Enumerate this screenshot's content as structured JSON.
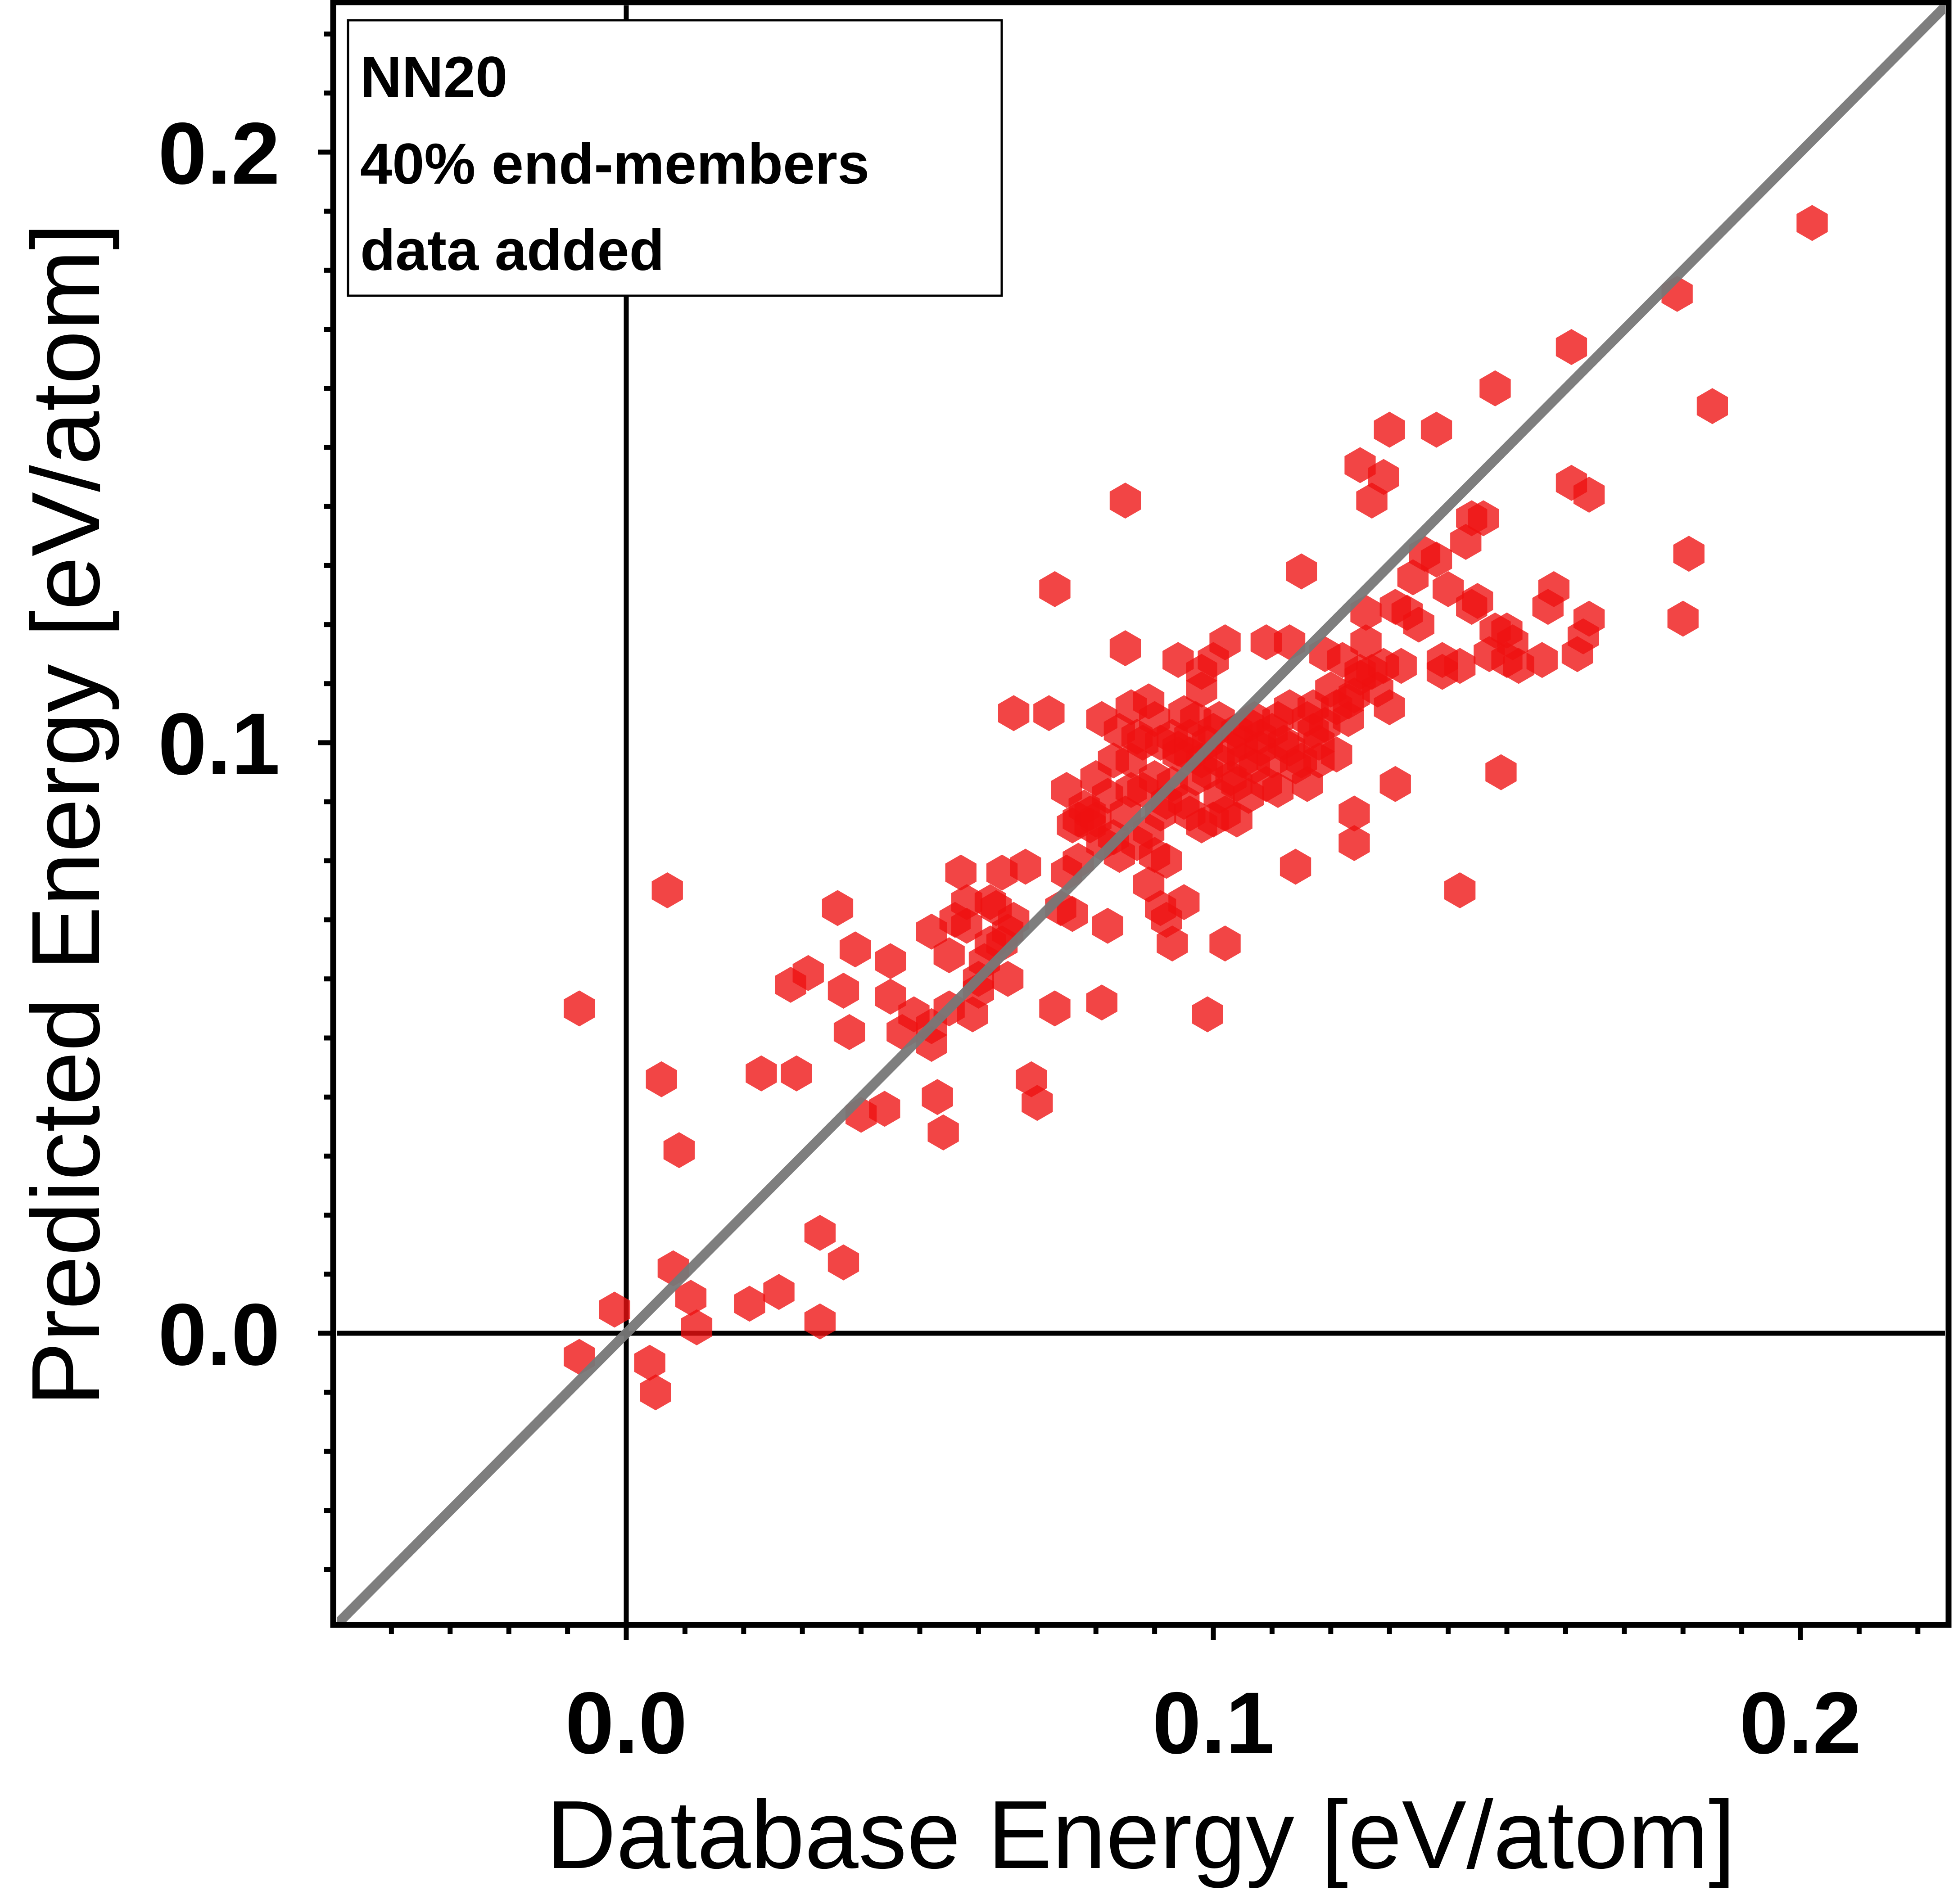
{
  "chart_data": {
    "type": "scatter",
    "title": "",
    "xlabel": "Database Energy [eV/atom]",
    "ylabel": "Predicted Energy [eV/atom]",
    "xlim": [
      -0.05,
      0.225
    ],
    "ylim": [
      -0.05,
      0.225
    ],
    "xticks": [
      0.0,
      0.1,
      0.2
    ],
    "xtick_labels": [
      "0.0",
      "0.1",
      "0.2"
    ],
    "yticks": [
      0.0,
      0.1,
      0.2
    ],
    "ytick_labels": [
      "0.0",
      "0.1",
      "0.2"
    ],
    "minor_tick_step": 0.01,
    "legend_position": "top-left",
    "annotation": [
      "NN20",
      "40% end-members",
      "data added"
    ],
    "reference_line": {
      "label": "y = x",
      "color": "#777777"
    },
    "zero_lines": true,
    "marker": {
      "shape": "hexagon",
      "color": "#ee1111",
      "opacity": 0.78
    },
    "series": [
      {
        "name": "NN20",
        "points": [
          [
            -0.008,
            -0.004
          ],
          [
            -0.008,
            0.055
          ],
          [
            -0.002,
            0.004
          ],
          [
            0.004,
            -0.005
          ],
          [
            0.005,
            -0.01
          ],
          [
            0.006,
            0.043
          ],
          [
            0.007,
            0.075
          ],
          [
            0.008,
            0.011
          ],
          [
            0.009,
            0.031
          ],
          [
            0.011,
            0.006
          ],
          [
            0.012,
            0.001
          ],
          [
            0.021,
            0.005
          ],
          [
            0.023,
            0.044
          ],
          [
            0.026,
            0.007
          ],
          [
            0.028,
            0.059
          ],
          [
            0.029,
            0.044
          ],
          [
            0.031,
            0.061
          ],
          [
            0.033,
            0.002
          ],
          [
            0.033,
            0.017
          ],
          [
            0.036,
            0.072
          ],
          [
            0.037,
            0.058
          ],
          [
            0.037,
            0.012
          ],
          [
            0.038,
            0.051
          ],
          [
            0.039,
            0.065
          ],
          [
            0.04,
            0.037
          ],
          [
            0.044,
            0.038
          ],
          [
            0.045,
            0.063
          ],
          [
            0.045,
            0.057
          ],
          [
            0.047,
            0.051
          ],
          [
            0.049,
            0.054
          ],
          [
            0.052,
            0.052
          ],
          [
            0.052,
            0.049
          ],
          [
            0.052,
            0.068
          ],
          [
            0.053,
            0.04
          ],
          [
            0.054,
            0.034
          ],
          [
            0.055,
            0.055
          ],
          [
            0.055,
            0.064
          ],
          [
            0.056,
            0.07
          ],
          [
            0.057,
            0.078
          ],
          [
            0.058,
            0.073
          ],
          [
            0.058,
            0.069
          ],
          [
            0.059,
            0.054
          ],
          [
            0.06,
            0.06
          ],
          [
            0.06,
            0.058
          ],
          [
            0.061,
            0.063
          ],
          [
            0.062,
            0.073
          ],
          [
            0.062,
            0.066
          ],
          [
            0.063,
            0.072
          ],
          [
            0.064,
            0.078
          ],
          [
            0.064,
            0.066
          ],
          [
            0.065,
            0.06
          ],
          [
            0.065,
            0.068
          ],
          [
            0.066,
            0.105
          ],
          [
            0.066,
            0.07
          ],
          [
            0.068,
            0.079
          ],
          [
            0.069,
            0.043
          ],
          [
            0.07,
            0.039
          ],
          [
            0.072,
            0.105
          ],
          [
            0.073,
            0.055
          ],
          [
            0.073,
            0.126
          ],
          [
            0.074,
            0.072
          ],
          [
            0.075,
            0.092
          ],
          [
            0.075,
            0.078
          ],
          [
            0.076,
            0.086
          ],
          [
            0.076,
            0.071
          ],
          [
            0.077,
            0.087
          ],
          [
            0.077,
            0.08
          ],
          [
            0.078,
            0.089
          ],
          [
            0.079,
            0.086
          ],
          [
            0.079,
            0.088
          ],
          [
            0.08,
            0.087
          ],
          [
            0.08,
            0.094
          ],
          [
            0.081,
            0.083
          ],
          [
            0.081,
            0.056
          ],
          [
            0.081,
            0.104
          ],
          [
            0.082,
            0.069
          ],
          [
            0.082,
            0.091
          ],
          [
            0.083,
            0.097
          ],
          [
            0.083,
            0.084
          ],
          [
            0.084,
            0.102
          ],
          [
            0.084,
            0.081
          ],
          [
            0.085,
            0.088
          ],
          [
            0.085,
            0.141
          ],
          [
            0.085,
            0.116
          ],
          [
            0.086,
            0.097
          ],
          [
            0.086,
            0.092
          ],
          [
            0.086,
            0.106
          ],
          [
            0.087,
            0.083
          ],
          [
            0.087,
            0.101
          ],
          [
            0.088,
            0.092
          ],
          [
            0.088,
            0.1
          ],
          [
            0.089,
            0.107
          ],
          [
            0.089,
            0.085
          ],
          [
            0.089,
            0.076
          ],
          [
            0.09,
            0.094
          ],
          [
            0.09,
            0.081
          ],
          [
            0.09,
            0.104
          ],
          [
            0.091,
            0.088
          ],
          [
            0.091,
            0.1
          ],
          [
            0.091,
            0.072
          ],
          [
            0.092,
            0.09
          ],
          [
            0.092,
            0.08
          ],
          [
            0.092,
            0.07
          ],
          [
            0.093,
            0.093
          ],
          [
            0.093,
            0.066
          ],
          [
            0.093,
            0.101
          ],
          [
            0.094,
            0.114
          ],
          [
            0.094,
            0.099
          ],
          [
            0.094,
            0.098
          ],
          [
            0.095,
            0.105
          ],
          [
            0.095,
            0.09
          ],
          [
            0.095,
            0.073
          ],
          [
            0.096,
            0.098
          ],
          [
            0.096,
            0.088
          ],
          [
            0.096,
            0.101
          ],
          [
            0.097,
            0.094
          ],
          [
            0.097,
            0.104
          ],
          [
            0.098,
            0.086
          ],
          [
            0.098,
            0.097
          ],
          [
            0.098,
            0.109
          ],
          [
            0.098,
            0.112
          ],
          [
            0.099,
            0.054
          ],
          [
            0.099,
            0.095
          ],
          [
            0.099,
            0.1
          ],
          [
            0.1,
            0.087
          ],
          [
            0.1,
            0.114
          ],
          [
            0.1,
            0.102
          ],
          [
            0.101,
            0.091
          ],
          [
            0.101,
            0.097
          ],
          [
            0.101,
            0.104
          ],
          [
            0.102,
            0.117
          ],
          [
            0.102,
            0.088
          ],
          [
            0.102,
            0.066
          ],
          [
            0.103,
            0.094
          ],
          [
            0.103,
            0.099
          ],
          [
            0.104,
            0.102
          ],
          [
            0.104,
            0.093
          ],
          [
            0.104,
            0.087
          ],
          [
            0.105,
            0.097
          ],
          [
            0.105,
            0.1
          ],
          [
            0.106,
            0.091
          ],
          [
            0.106,
            0.103
          ],
          [
            0.107,
            0.096
          ],
          [
            0.107,
            0.104
          ],
          [
            0.108,
            0.101
          ],
          [
            0.108,
            0.099
          ],
          [
            0.109,
            0.093
          ],
          [
            0.109,
            0.117
          ],
          [
            0.11,
            0.102
          ],
          [
            0.11,
            0.097
          ],
          [
            0.111,
            0.092
          ],
          [
            0.111,
            0.104
          ],
          [
            0.112,
            0.1
          ],
          [
            0.113,
            0.099
          ],
          [
            0.113,
            0.106
          ],
          [
            0.113,
            0.117
          ],
          [
            0.114,
            0.096
          ],
          [
            0.114,
            0.079
          ],
          [
            0.115,
            0.097
          ],
          [
            0.115,
            0.129
          ],
          [
            0.116,
            0.093
          ],
          [
            0.116,
            0.104
          ],
          [
            0.117,
            0.102
          ],
          [
            0.117,
            0.106
          ],
          [
            0.118,
            0.1
          ],
          [
            0.118,
            0.097
          ],
          [
            0.119,
            0.103
          ],
          [
            0.119,
            0.115
          ],
          [
            0.12,
            0.109
          ],
          [
            0.121,
            0.106
          ],
          [
            0.121,
            0.098
          ],
          [
            0.122,
            0.114
          ],
          [
            0.123,
            0.107
          ],
          [
            0.123,
            0.104
          ],
          [
            0.124,
            0.088
          ],
          [
            0.124,
            0.083
          ],
          [
            0.124,
            0.108
          ],
          [
            0.125,
            0.112
          ],
          [
            0.125,
            0.111
          ],
          [
            0.125,
            0.147
          ],
          [
            0.126,
            0.122
          ],
          [
            0.126,
            0.117
          ],
          [
            0.127,
            0.141
          ],
          [
            0.127,
            0.112
          ],
          [
            0.128,
            0.109
          ],
          [
            0.129,
            0.145
          ],
          [
            0.129,
            0.113
          ],
          [
            0.13,
            0.153
          ],
          [
            0.13,
            0.106
          ],
          [
            0.131,
            0.123
          ],
          [
            0.131,
            0.093
          ],
          [
            0.132,
            0.113
          ],
          [
            0.133,
            0.122
          ],
          [
            0.134,
            0.128
          ],
          [
            0.135,
            0.12
          ],
          [
            0.136,
            0.132
          ],
          [
            0.138,
            0.153
          ],
          [
            0.138,
            0.131
          ],
          [
            0.139,
            0.114
          ],
          [
            0.139,
            0.112
          ],
          [
            0.14,
            0.126
          ],
          [
            0.142,
            0.075
          ],
          [
            0.142,
            0.113
          ],
          [
            0.143,
            0.134
          ],
          [
            0.144,
            0.123
          ],
          [
            0.144,
            0.138
          ],
          [
            0.145,
            0.124
          ],
          [
            0.146,
            0.138
          ],
          [
            0.147,
            0.115
          ],
          [
            0.148,
            0.16
          ],
          [
            0.148,
            0.119
          ],
          [
            0.149,
            0.095
          ],
          [
            0.15,
            0.114
          ],
          [
            0.15,
            0.119
          ],
          [
            0.151,
            0.117
          ],
          [
            0.152,
            0.113
          ],
          [
            0.156,
            0.114
          ],
          [
            0.157,
            0.123
          ],
          [
            0.158,
            0.126
          ],
          [
            0.161,
            0.167
          ],
          [
            0.161,
            0.144
          ],
          [
            0.162,
            0.115
          ],
          [
            0.163,
            0.118
          ],
          [
            0.164,
            0.121
          ],
          [
            0.164,
            0.142
          ],
          [
            0.179,
            0.176
          ],
          [
            0.18,
            0.121
          ],
          [
            0.181,
            0.132
          ],
          [
            0.185,
            0.157
          ],
          [
            0.202,
            0.188
          ]
        ]
      }
    ]
  }
}
